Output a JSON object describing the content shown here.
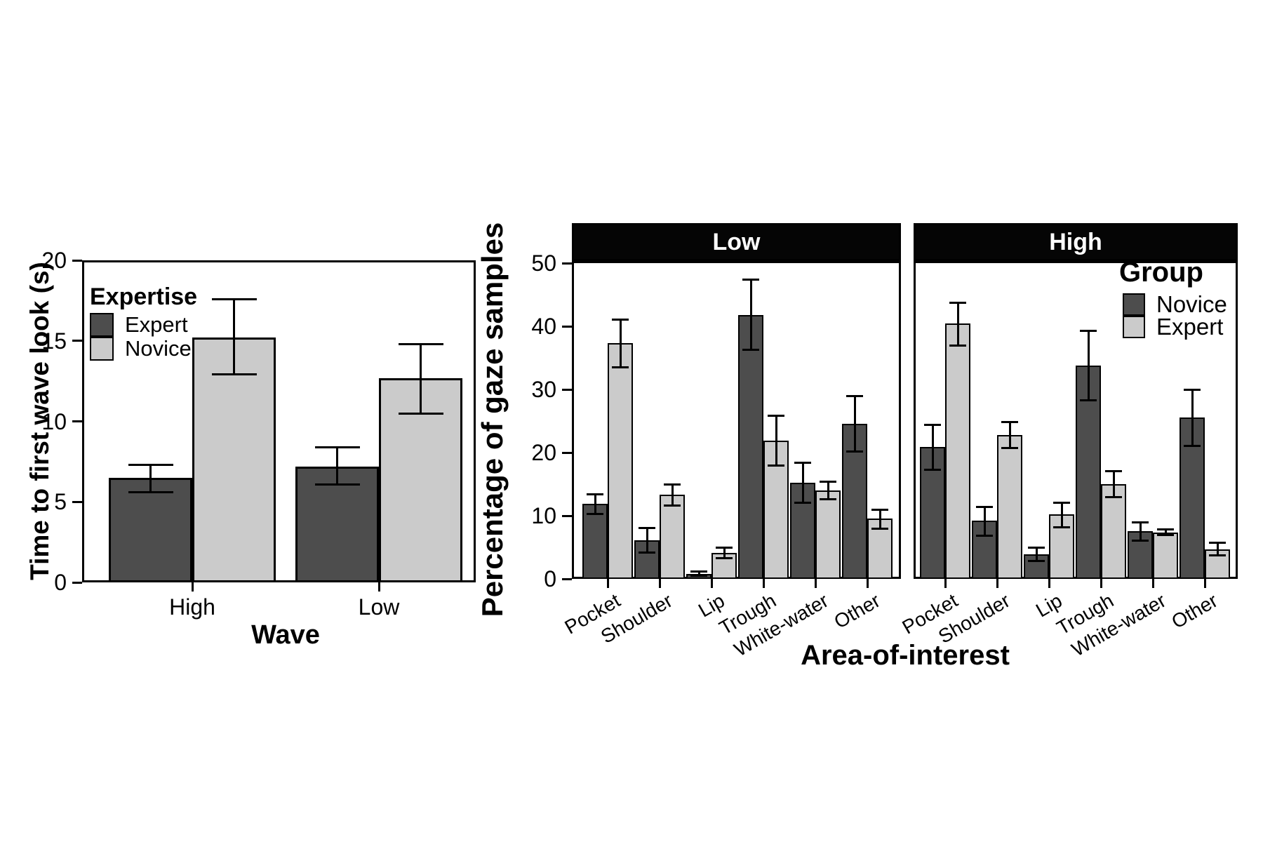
{
  "figure": {
    "background": "#ffffff",
    "description": "Two bar charts with error bars comparing expert and novice surfers"
  },
  "colors": {
    "dark": "#4d4d4d",
    "light": "#cbcbcb",
    "strip_bg": "#050505",
    "strip_text": "#ffffff",
    "axis": "#000000"
  },
  "chart_data": [
    {
      "id": "time-to-first-wave-look",
      "type": "bar",
      "title": "",
      "xlabel": "Wave",
      "ylabel": "Time to first wave look (s)",
      "ylim": [
        0,
        20
      ],
      "yticks": [
        0,
        5,
        10,
        15,
        20
      ],
      "categories": [
        "High",
        "Low"
      ],
      "legend_title": "Expertise",
      "legend_position": "top-left-inside",
      "grid": "off",
      "error_bars": true,
      "series": [
        {
          "name": "Expert",
          "color_role": "dark",
          "values": [
            6.5,
            7.2
          ],
          "ci_low": [
            5.6,
            6.1
          ],
          "ci_high": [
            7.3,
            8.4
          ]
        },
        {
          "name": "Novice",
          "color_role": "light",
          "values": [
            15.2,
            12.7
          ],
          "ci_low": [
            12.9,
            10.5
          ],
          "ci_high": [
            17.6,
            14.8
          ]
        }
      ]
    },
    {
      "id": "gaze-samples-by-area-of-interest",
      "type": "bar",
      "title": "",
      "xlabel": "Area-of-interest",
      "ylabel": "Percentage of gaze samples",
      "ylim": [
        0,
        50
      ],
      "yticks": [
        0,
        10,
        20,
        30,
        40,
        50
      ],
      "categories": [
        "Pocket",
        "Shoulder",
        "Lip",
        "Trough",
        "White-water",
        "Other"
      ],
      "legend_title": "Group",
      "legend_position": "top-right-inside-high-facet",
      "grid": "off",
      "error_bars": true,
      "facets": [
        {
          "label": "Low",
          "series": [
            {
              "name": "Novice",
              "color_role": "dark",
              "values": [
                11.9,
                6.1,
                0.8,
                41.8,
                15.2,
                24.6
              ],
              "ci_low": [
                10.3,
                4.2,
                0.5,
                36.3,
                12.1,
                20.2
              ],
              "ci_high": [
                13.4,
                8.1,
                1.2,
                47.4,
                18.4,
                29.0
              ]
            },
            {
              "name": "Expert",
              "color_role": "light",
              "values": [
                37.3,
                13.3,
                4.1,
                21.9,
                14.0,
                9.6
              ],
              "ci_low": [
                33.5,
                11.6,
                3.3,
                17.9,
                12.6,
                8.0
              ],
              "ci_high": [
                41.1,
                15.0,
                5.0,
                25.8,
                15.4,
                11.0
              ]
            }
          ]
        },
        {
          "label": "High",
          "series": [
            {
              "name": "Novice",
              "color_role": "dark",
              "values": [
                20.9,
                9.2,
                3.9,
                33.8,
                7.6,
                25.6
              ],
              "ci_low": [
                17.3,
                6.8,
                2.8,
                28.3,
                6.1,
                21.1
              ],
              "ci_high": [
                24.4,
                11.4,
                5.0,
                39.3,
                9.0,
                30.0
              ]
            },
            {
              "name": "Expert",
              "color_role": "light",
              "values": [
                40.4,
                22.8,
                10.2,
                15.0,
                7.3,
                4.7
              ],
              "ci_low": [
                37.0,
                20.7,
                8.2,
                12.9,
                6.9,
                3.7
              ],
              "ci_high": [
                43.7,
                24.8,
                12.1,
                17.1,
                7.8,
                5.7
              ]
            }
          ]
        }
      ]
    }
  ]
}
